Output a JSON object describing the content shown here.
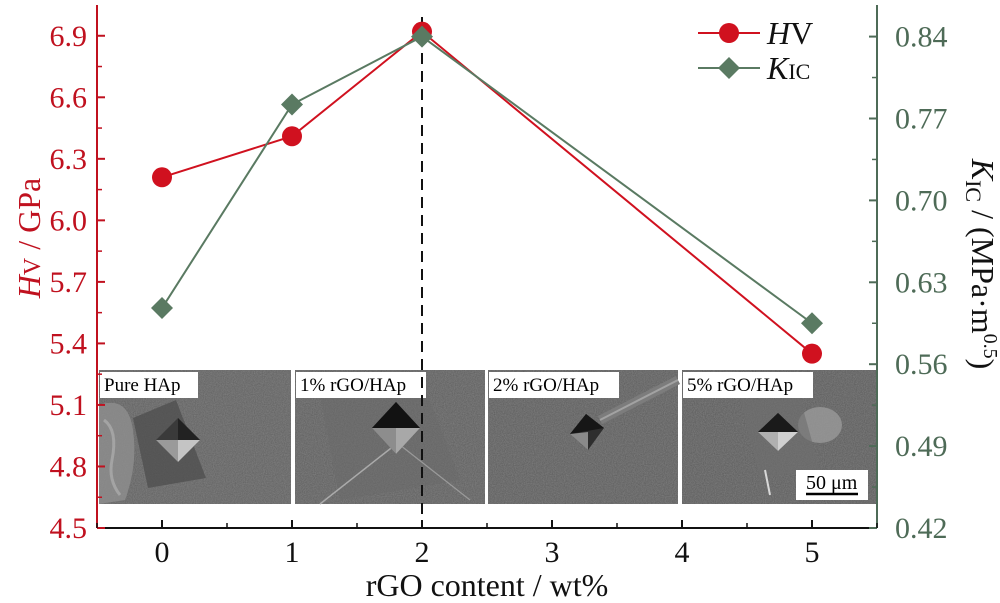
{
  "chart_data": {
    "type": "line",
    "x": [
      0,
      1,
      2,
      5
    ],
    "x_ticks": [
      "0",
      "1",
      "2",
      "3",
      "4",
      "5"
    ],
    "xlabel": "rGO content / wt%",
    "xlim": [
      -0.5,
      5.5
    ],
    "ylabel_left": {
      "main": "H",
      "sub": "V",
      "unit": " / GPa"
    },
    "ylabel_right": {
      "main": "K",
      "sub": "IC",
      "unit": " / (MPa·m",
      "sup": "0.5",
      "close": ")"
    },
    "y_left_ticks": [
      "4.5",
      "4.8",
      "5.1",
      "5.4",
      "5.7",
      "6.0",
      "6.3",
      "6.6",
      "6.9"
    ],
    "y_right_ticks": [
      "0.42",
      "0.49",
      "0.56",
      "0.63",
      "0.70",
      "0.77",
      "0.84"
    ],
    "ylim_left": [
      4.5,
      7.05
    ],
    "ylim_right": [
      0.42,
      0.867
    ],
    "series": [
      {
        "name": "Hv",
        "label_main": "H",
        "label_sub": "V",
        "axis": "left",
        "marker": "circle",
        "color": "#d0111f",
        "values": [
          6.21,
          6.41,
          6.92,
          5.35
        ]
      },
      {
        "name": "KIC",
        "label_main": "K",
        "label_sub": "IC",
        "axis": "right",
        "marker": "diamond",
        "color": "#5a7a62",
        "values": [
          0.608,
          0.782,
          0.84,
          0.595
        ]
      }
    ],
    "reference_line": {
      "x": 2,
      "style": "dashed"
    },
    "legend": "top-right",
    "insets": [
      "Pure HAp",
      "1% rGO/HAp",
      "2% rGO/HAp",
      "5% rGO/HAp"
    ],
    "scale_bar": "50 μm"
  }
}
